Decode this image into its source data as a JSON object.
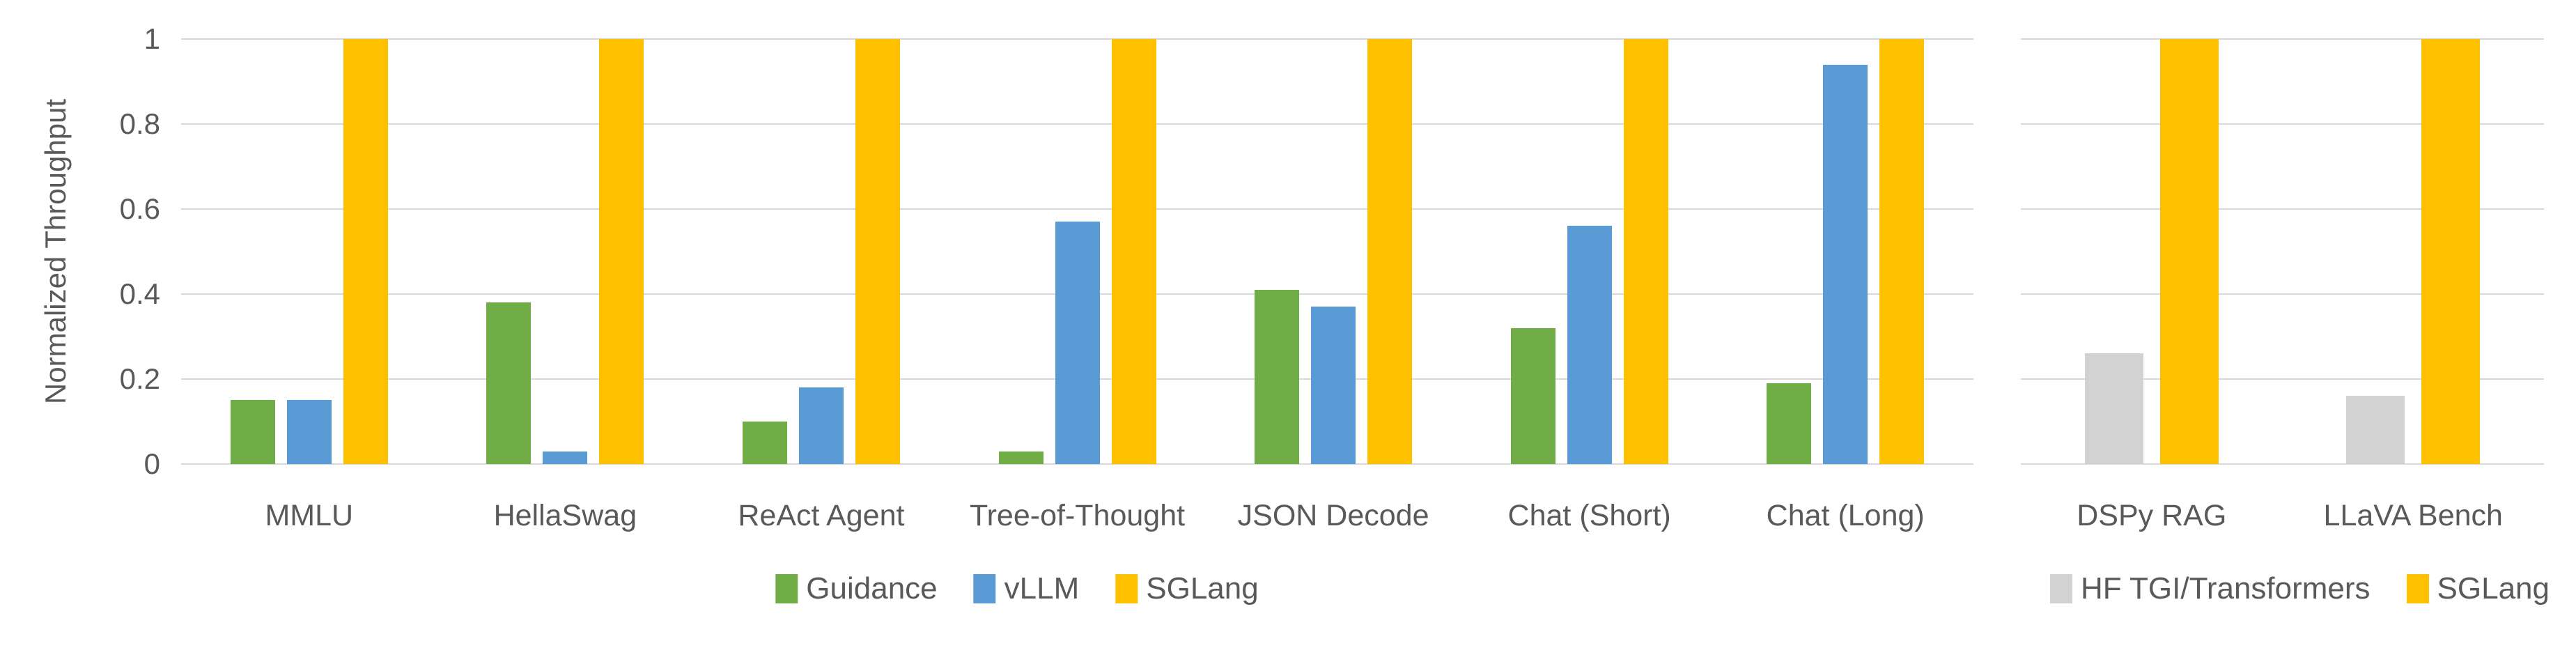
{
  "figure": {
    "y_axis": {
      "label": "Normalized Throughput",
      "tick_labels": [
        "0",
        "0.2",
        "0.4",
        "0.6",
        "0.8",
        "1"
      ],
      "tick_values": [
        0,
        0.2,
        0.4,
        0.6,
        0.8,
        1
      ]
    },
    "colors": {
      "guidance_green": "#70AD47",
      "vllm_blue": "#5B9BD5",
      "sglang_yellow": "#FFC000",
      "hf_tgi_gray": "#D2D2D2",
      "gridline": "#D9D9D9",
      "text": "#595959"
    }
  },
  "chart_data": [
    {
      "type": "bar",
      "title": "",
      "xlabel": "",
      "ylabel": "Normalized Throughput",
      "ylim": [
        0,
        1
      ],
      "grid": true,
      "legend_position": "bottom-center",
      "categories": [
        "MMLU",
        "HellaSwag",
        "ReAct Agent",
        "Tree-of-Thought",
        "JSON Decode",
        "Chat (Short)",
        "Chat (Long)"
      ],
      "series": [
        {
          "name": "Guidance",
          "color": "#70AD47",
          "values": [
            0.15,
            0.38,
            0.1,
            0.03,
            0.41,
            0.32,
            0.19
          ]
        },
        {
          "name": "vLLM",
          "color": "#5B9BD5",
          "values": [
            0.15,
            0.03,
            0.18,
            0.57,
            0.37,
            0.56,
            0.94
          ]
        },
        {
          "name": "SGLang",
          "color": "#FFC000",
          "values": [
            1,
            1,
            1,
            1,
            1,
            1,
            1
          ]
        }
      ]
    },
    {
      "type": "bar",
      "title": "",
      "xlabel": "",
      "ylabel": "",
      "ylim": [
        0,
        1
      ],
      "grid": true,
      "legend_position": "bottom-right",
      "categories": [
        "DSPy RAG",
        "LLaVA Bench"
      ],
      "series": [
        {
          "name": "HF TGI/Transformers",
          "color": "#D2D2D2",
          "values": [
            0.26,
            0.16
          ]
        },
        {
          "name": "SGLang",
          "color": "#FFC000",
          "values": [
            1,
            1
          ]
        }
      ]
    }
  ]
}
